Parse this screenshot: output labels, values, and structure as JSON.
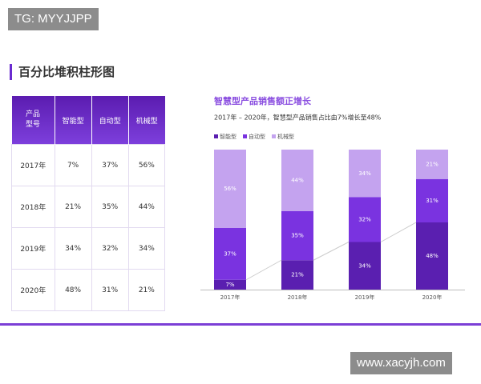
{
  "watermark_top": "TG: MYYJJPP",
  "section_title": "百分比堆积柱形图",
  "table": {
    "header": [
      "产品型号",
      "智能型",
      "自动型",
      "机械型"
    ],
    "rows": [
      [
        "2017年",
        "7%",
        "37%",
        "56%"
      ],
      [
        "2018年",
        "21%",
        "35%",
        "44%"
      ],
      [
        "2019年",
        "34%",
        "32%",
        "34%"
      ],
      [
        "2020年",
        "48%",
        "31%",
        "21%"
      ]
    ]
  },
  "chart_data": {
    "type": "stacked_bar",
    "title": "智慧型产品销售额正增长",
    "subtitle": "2017年 – 2020年，智慧型产品销售占比由7%增长至48%",
    "categories": [
      "2017年",
      "2018年",
      "2019年",
      "2020年"
    ],
    "ylim": [
      0,
      100
    ],
    "series": [
      {
        "name": "智能型",
        "color": "#5a1fb0",
        "values": [
          7,
          21,
          34,
          48
        ],
        "value_labels": [
          "7%",
          "21%",
          "34%",
          "48%"
        ]
      },
      {
        "name": "自动型",
        "color": "#7a33e0",
        "values": [
          37,
          35,
          32,
          31
        ],
        "value_labels": [
          "37%",
          "35%",
          "32%",
          "31%"
        ]
      },
      {
        "name": "机械型",
        "color": "#c4a3ef",
        "values": [
          56,
          44,
          34,
          21
        ],
        "value_labels": [
          "56%",
          "44%",
          "34%",
          "21%"
        ]
      }
    ]
  },
  "watermark_bottom": "www.xacyjh.com"
}
